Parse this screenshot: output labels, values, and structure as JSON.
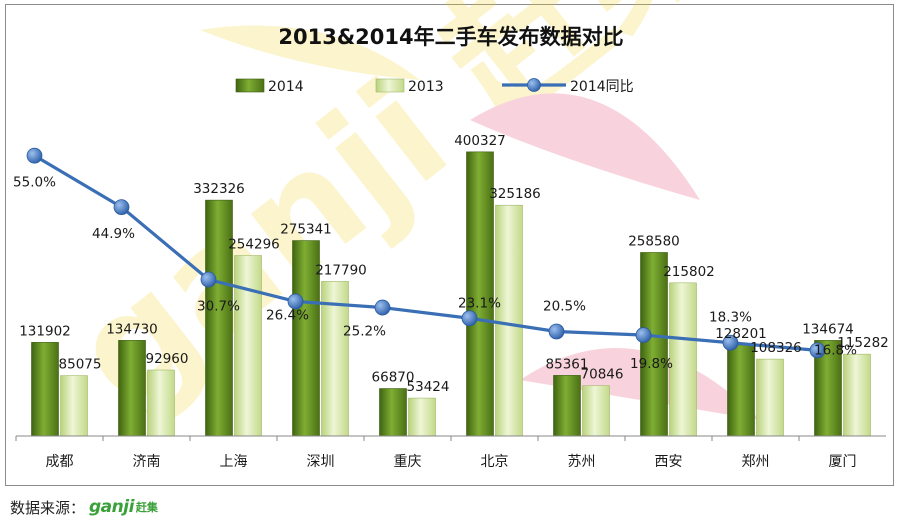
{
  "chart_data": {
    "type": "bar",
    "title": "2013&2014年二手车发布数据对比",
    "categories": [
      "成都",
      "济南",
      "上海",
      "深圳",
      "重庆",
      "北京",
      "苏州",
      "西安",
      "郑州",
      "厦门"
    ],
    "series": [
      {
        "name": "2014",
        "type": "bar",
        "color": "#5f8a1e",
        "values": [
          131902,
          134730,
          332326,
          275341,
          66870,
          400327,
          85361,
          258580,
          128201,
          134674
        ]
      },
      {
        "name": "2013",
        "type": "bar",
        "color": "#d6e8a8",
        "values": [
          85075,
          92960,
          254296,
          217790,
          53424,
          325186,
          70846,
          215802,
          108326,
          115282
        ]
      },
      {
        "name": "2014同比",
        "type": "line",
        "color": "#3a6fb5",
        "axis": "secondary",
        "values": [
          55.0,
          44.9,
          30.7,
          26.4,
          25.2,
          23.1,
          20.5,
          19.8,
          18.3,
          16.8
        ],
        "labels": [
          "55.0%",
          "44.9%",
          "30.7%",
          "26.4%",
          "25.2%",
          "23.1%",
          "20.5%",
          "19.8%",
          "18.3%",
          "16.8%"
        ]
      }
    ],
    "ylim": [
      0,
      410000
    ],
    "y2lim": [
      0,
      62
    ],
    "grid": false,
    "legend_position": "top-center"
  },
  "watermark": {
    "text": "ganji 赶集"
  },
  "source": {
    "label": "数据来源：",
    "logo_text": "ganji",
    "logo_cn": "赶集"
  },
  "colors": {
    "line_marker": "#3f74c0",
    "axis": "#888888",
    "text": "#1a1a1a"
  }
}
